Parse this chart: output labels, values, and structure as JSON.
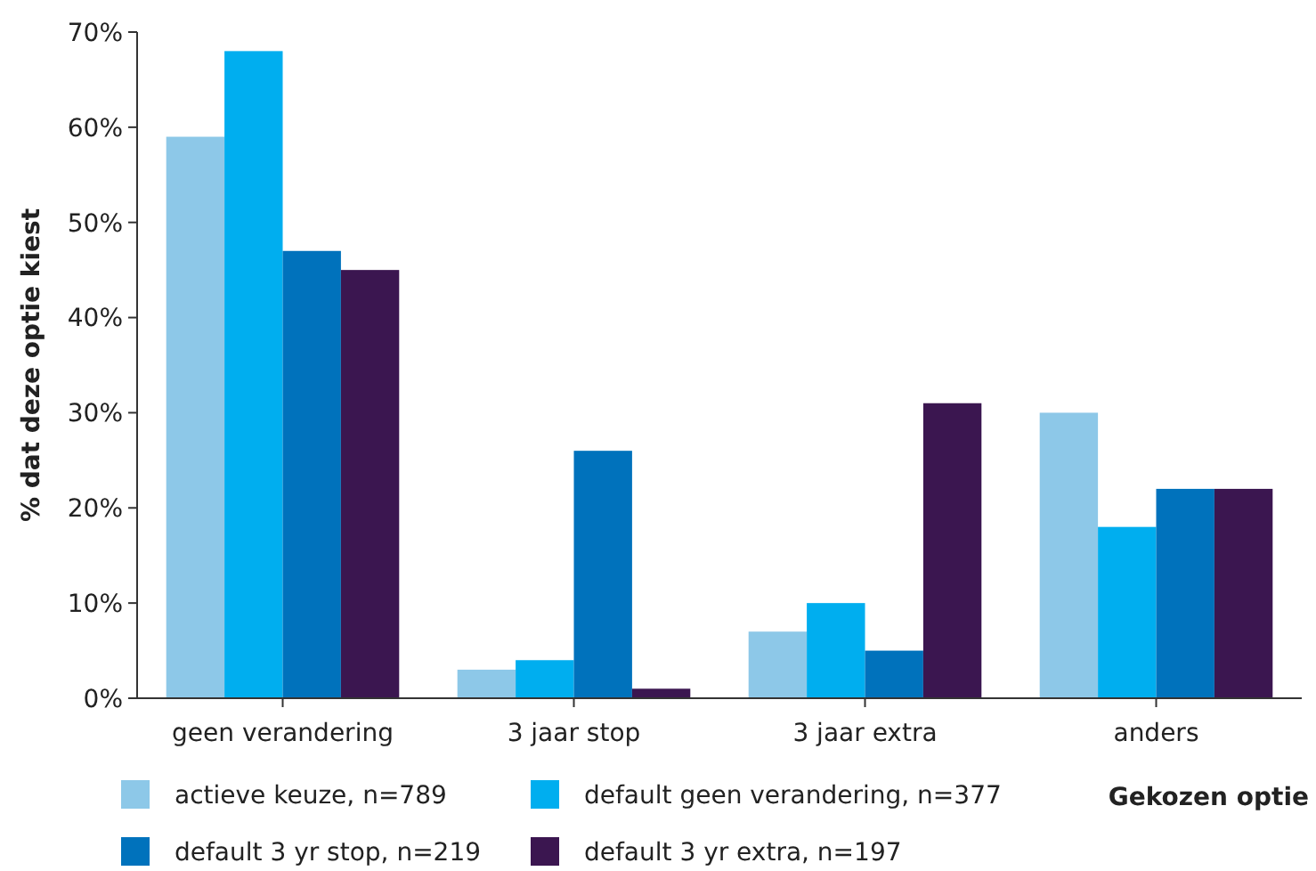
{
  "chart_data": {
    "type": "bar",
    "xlabel": "Gekozen optie",
    "ylabel": "% dat deze optie kiest",
    "categories": [
      "geen verandering",
      "3 jaar stop",
      "3 jaar extra",
      "anders"
    ],
    "series": [
      {
        "name": "actieve keuze, n=789",
        "color": "#8dc8e8",
        "values": [
          59,
          3,
          7,
          30
        ]
      },
      {
        "name": "default geen verandering, n=377",
        "color": "#00aeef",
        "values": [
          68,
          4,
          10,
          18
        ]
      },
      {
        "name": "default 3 yr stop, n=219",
        "color": "#0072bc",
        "values": [
          47,
          26,
          5,
          22
        ]
      },
      {
        "name": "default 3 yr extra, n=197",
        "color": "#3b1650",
        "values": [
          45,
          1,
          31,
          22
        ]
      }
    ],
    "ylim": [
      0,
      70
    ],
    "yticks": [
      {
        "value": 0,
        "label": "0%"
      },
      {
        "value": 10,
        "label": "10%"
      },
      {
        "value": 20,
        "label": "20%"
      },
      {
        "value": 30,
        "label": "30%"
      },
      {
        "value": 40,
        "label": "40%"
      },
      {
        "value": 50,
        "label": "50%"
      },
      {
        "value": 60,
        "label": "60%"
      },
      {
        "value": 70,
        "label": "70%"
      }
    ],
    "grid": false,
    "legend": "bottom"
  }
}
